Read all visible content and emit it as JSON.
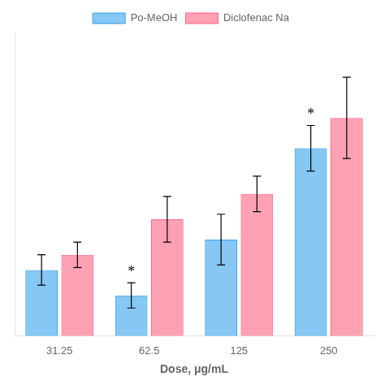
{
  "chart_data": {
    "type": "bar",
    "xlabel": "Dose, μg/mL",
    "categories": [
      "31.25",
      "62.5",
      "125",
      "250"
    ],
    "series": [
      {
        "name": "Po-MeOH",
        "values": [
          33,
          28,
          39,
          57
        ],
        "errors": [
          3.0,
          2.5,
          5.0,
          4.5
        ]
      },
      {
        "name": "Diclofenac Na",
        "values": [
          36,
          43,
          48,
          63
        ],
        "errors": [
          2.5,
          4.5,
          3.5,
          8.0
        ]
      }
    ],
    "ylim": [
      20,
      80
    ],
    "grid": false,
    "legend": "top",
    "tick_labels": "x",
    "annotations": [
      {
        "text": "*",
        "series": "Po-MeOH",
        "category": "62.5"
      },
      {
        "text": "*",
        "series": "Po-MeOH",
        "category": "250"
      }
    ]
  }
}
